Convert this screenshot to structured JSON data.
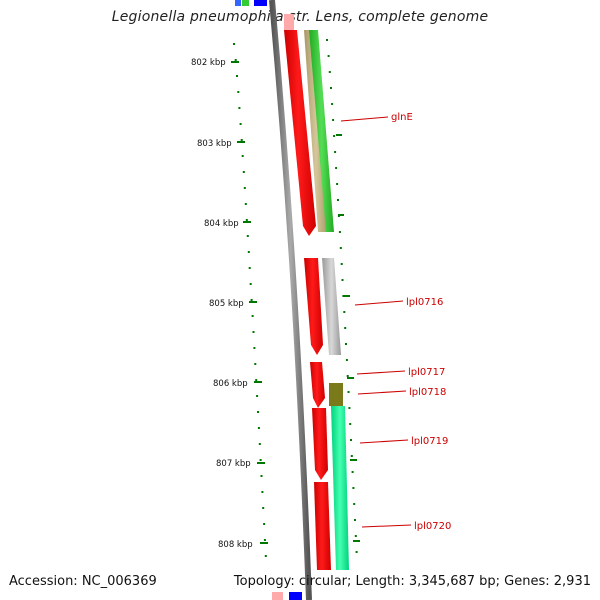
{
  "header": {
    "title": "Legionella pneumophila str. Lens, complete genome"
  },
  "footer": {
    "accession": "Accession: NC_006369",
    "topology": "Topology: circular; Length: 3,345,687 bp; Genes: 2,931"
  },
  "ruler": {
    "labels": [
      "802 kbp",
      "803 kbp",
      "804 kbp",
      "805 kbp",
      "806 kbp",
      "807 kbp",
      "808 kbp"
    ]
  },
  "genes": [
    {
      "name": "glnE",
      "color": "#cc0000"
    },
    {
      "name": "lpl0716",
      "color": "#cc0000"
    },
    {
      "name": "lpl0717",
      "color": "#cc0000"
    },
    {
      "name": "lpl0718",
      "color": "#cc0000"
    },
    {
      "name": "lpl0719",
      "color": "#cc0000"
    },
    {
      "name": "lpl0720",
      "color": "#cc0000"
    }
  ],
  "colors": {
    "ruler_tick": "#007700",
    "backbone": "#777777",
    "cds_forward": "#ff0000",
    "cds_red_shadow": "#b30000",
    "track_tan": "#c2b280",
    "track_green": "#33cc33",
    "track_grey": "#bbbbbb",
    "track_olive": "#7a7a1a",
    "track_spring": "#00ff99",
    "top_blue": "#0000ff",
    "top_pink": "#ff9999"
  }
}
